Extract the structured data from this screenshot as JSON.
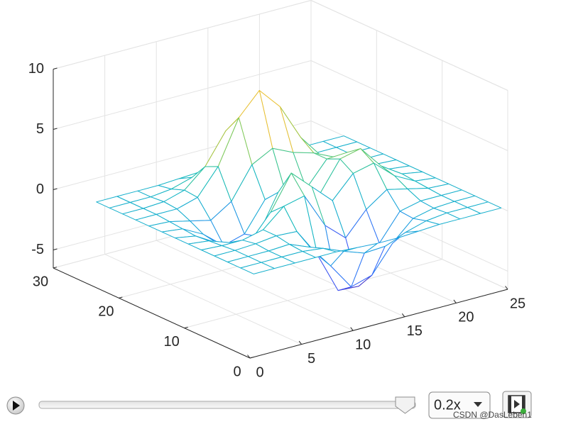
{
  "chart_data": {
    "type": "mesh",
    "x": [
      1,
      3,
      5,
      7,
      9,
      11,
      13,
      15,
      17,
      19,
      21,
      23,
      25
    ],
    "y": [
      1,
      3,
      5,
      7,
      9,
      11,
      13,
      15,
      17,
      19,
      21,
      23,
      25
    ],
    "z": [
      [
        0,
        0,
        0,
        0,
        0,
        -0.1,
        -0.2,
        -0.2,
        -0.1,
        0,
        0,
        0,
        0
      ],
      [
        0,
        0,
        0,
        0,
        -0.2,
        -0.9,
        -1.5,
        -1.4,
        -0.7,
        -0.2,
        0,
        0,
        0
      ],
      [
        0,
        0,
        0,
        0.1,
        -0.6,
        -2.6,
        -4.8,
        -4.3,
        -2.1,
        -0.5,
        -0.1,
        0,
        0
      ],
      [
        0,
        0,
        0.1,
        0.3,
        0.2,
        -2.2,
        -5.6,
        -5.7,
        -2.6,
        -0.4,
        0,
        0,
        0
      ],
      [
        0,
        -0.1,
        -0.1,
        0.3,
        1.8,
        2.2,
        -0.7,
        -2.2,
        -0.3,
        0.9,
        0.5,
        0.1,
        0
      ],
      [
        0,
        -0.2,
        -0.8,
        -1.2,
        0.8,
        3.6,
        2.0,
        0.4,
        2.2,
        2.6,
        1.1,
        0.2,
        0
      ],
      [
        0,
        -0.3,
        -1.3,
        -2.8,
        -1.7,
        1.5,
        1.0,
        0.4,
        2.9,
        3.3,
        1.4,
        0.3,
        0
      ],
      [
        0,
        -0.2,
        -1.1,
        -2.5,
        -2.0,
        0.4,
        0.5,
        0.4,
        2.4,
        2.5,
        1.1,
        0.2,
        0
      ],
      [
        0,
        -0.1,
        -0.5,
        -0.9,
        0.2,
        2.8,
        3.7,
        2.9,
        2.4,
        1.6,
        0.6,
        0.1,
        0
      ],
      [
        0,
        0,
        0,
        0.5,
        2.6,
        6.2,
        8.0,
        6.2,
        3.2,
        1.2,
        0.3,
        0,
        0
      ],
      [
        0,
        0,
        0.1,
        0.6,
        2.1,
        4.6,
        5.9,
        4.6,
        2.2,
        0.7,
        0.1,
        0,
        0
      ],
      [
        0,
        0,
        0,
        0.2,
        0.7,
        1.4,
        1.9,
        1.4,
        0.7,
        0.2,
        0,
        0,
        0
      ],
      [
        0,
        0,
        0,
        0,
        0.1,
        0.2,
        0.2,
        0.2,
        0.1,
        0,
        0,
        0,
        0
      ]
    ],
    "xlim": [
      0,
      25
    ],
    "ylim": [
      0,
      30
    ],
    "zlim": [
      -6.5,
      10
    ],
    "xticks": [
      0,
      5,
      10,
      15,
      20,
      25
    ],
    "yticks": [
      0,
      10,
      20,
      30
    ],
    "zticks": [
      -5,
      0,
      5,
      10
    ],
    "grid": true,
    "colormap": [
      "#3e26a8",
      "#4740e6",
      "#3a63fc",
      "#2485f0",
      "#1aa3dd",
      "#11b8bf",
      "#36c594",
      "#7fca5c",
      "#c2c232",
      "#f4bf36",
      "#fbdd23",
      "#f9fb15"
    ]
  },
  "controls": {
    "speed": "0.2x"
  },
  "watermark": "CSDN @DasLeben1"
}
